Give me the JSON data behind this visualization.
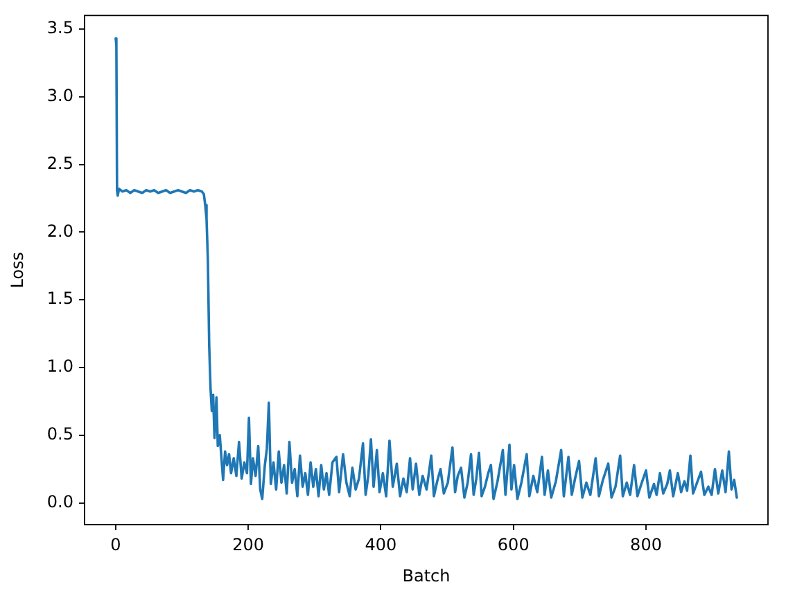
{
  "chart_data": {
    "type": "line",
    "xlabel": "Batch",
    "ylabel": "Loss",
    "color": "#1f77b4",
    "line_style": "solid",
    "xlim": [
      -47,
      984
    ],
    "xticks": [
      0,
      200,
      400,
      600,
      800
    ],
    "ylim": [
      -0.16,
      3.6
    ],
    "yticks": [
      {
        "value": 0,
        "label": "0.0"
      },
      0.5,
      {
        "value": 1,
        "label": "1.0"
      },
      1.5,
      {
        "value": 2,
        "label": "2.0"
      },
      2.5,
      {
        "value": 3,
        "label": "3.0"
      },
      3.5
    ],
    "x": [
      0,
      1,
      2,
      3,
      5,
      10,
      16,
      22,
      28,
      34,
      40,
      46,
      52,
      58,
      64,
      70,
      76,
      82,
      88,
      94,
      100,
      106,
      112,
      118,
      124,
      130,
      133,
      135,
      137,
      139,
      141,
      143,
      145,
      147,
      149,
      152,
      154,
      157,
      160,
      162,
      165,
      168,
      171,
      174,
      178,
      182,
      186,
      190,
      194,
      198,
      201,
      204,
      207,
      211,
      215,
      218,
      221,
      225,
      228,
      231,
      234,
      238,
      242,
      246,
      250,
      254,
      258,
      262,
      266,
      270,
      274,
      278,
      282,
      286,
      290,
      294,
      298,
      302,
      306,
      310,
      314,
      318,
      322,
      327,
      333,
      337,
      343,
      348,
      353,
      357,
      362,
      367,
      373,
      377,
      381,
      385,
      389,
      394,
      398,
      403,
      408,
      413,
      418,
      424,
      429,
      434,
      439,
      444,
      448,
      453,
      458,
      463,
      469,
      476,
      480,
      485,
      490,
      495,
      501,
      508,
      512,
      516,
      521,
      526,
      531,
      536,
      540,
      544,
      548,
      552,
      557,
      562,
      566,
      570,
      576,
      584,
      588,
      594,
      597,
      601,
      606,
      612,
      620,
      624,
      630,
      636,
      643,
      647,
      652,
      657,
      664,
      672,
      676,
      683,
      688,
      693,
      699,
      704,
      710,
      716,
      724,
      729,
      735,
      743,
      748,
      754,
      761,
      765,
      771,
      776,
      782,
      787,
      793,
      800,
      805,
      812,
      816,
      821,
      826,
      832,
      836,
      841,
      848,
      853,
      858,
      862,
      867,
      871,
      877,
      883,
      888,
      894,
      899,
      904,
      909,
      915,
      920,
      925,
      929,
      933,
      937
    ],
    "values": [
      3.43,
      3.38,
      2.31,
      2.27,
      2.32,
      2.3,
      2.31,
      2.29,
      2.31,
      2.3,
      2.29,
      2.31,
      2.3,
      2.31,
      2.29,
      2.3,
      2.31,
      2.29,
      2.3,
      2.31,
      2.3,
      2.29,
      2.31,
      2.3,
      2.31,
      2.3,
      2.28,
      2.2,
      2.1,
      1.8,
      1.17,
      0.85,
      0.68,
      0.8,
      0.48,
      0.78,
      0.42,
      0.5,
      0.3,
      0.17,
      0.38,
      0.28,
      0.36,
      0.22,
      0.33,
      0.2,
      0.45,
      0.18,
      0.3,
      0.22,
      0.63,
      0.14,
      0.33,
      0.2,
      0.42,
      0.1,
      0.03,
      0.28,
      0.4,
      0.74,
      0.14,
      0.3,
      0.1,
      0.38,
      0.15,
      0.28,
      0.07,
      0.45,
      0.15,
      0.25,
      0.05,
      0.35,
      0.12,
      0.22,
      0.06,
      0.3,
      0.12,
      0.25,
      0.05,
      0.28,
      0.1,
      0.22,
      0.06,
      0.3,
      0.34,
      0.08,
      0.36,
      0.15,
      0.05,
      0.26,
      0.1,
      0.18,
      0.44,
      0.06,
      0.2,
      0.47,
      0.12,
      0.39,
      0.08,
      0.22,
      0.05,
      0.46,
      0.12,
      0.29,
      0.05,
      0.18,
      0.08,
      0.33,
      0.1,
      0.29,
      0.06,
      0.2,
      0.1,
      0.35,
      0.05,
      0.16,
      0.25,
      0.07,
      0.15,
      0.41,
      0.08,
      0.2,
      0.26,
      0.04,
      0.15,
      0.36,
      0.06,
      0.18,
      0.37,
      0.05,
      0.12,
      0.22,
      0.28,
      0.03,
      0.16,
      0.39,
      0.06,
      0.43,
      0.1,
      0.28,
      0.03,
      0.15,
      0.36,
      0.05,
      0.2,
      0.08,
      0.34,
      0.06,
      0.24,
      0.04,
      0.16,
      0.39,
      0.05,
      0.34,
      0.06,
      0.18,
      0.31,
      0.04,
      0.15,
      0.06,
      0.33,
      0.05,
      0.17,
      0.29,
      0.04,
      0.12,
      0.35,
      0.05,
      0.15,
      0.06,
      0.28,
      0.05,
      0.14,
      0.24,
      0.04,
      0.14,
      0.06,
      0.22,
      0.07,
      0.14,
      0.24,
      0.05,
      0.22,
      0.08,
      0.16,
      0.09,
      0.35,
      0.07,
      0.15,
      0.23,
      0.06,
      0.12,
      0.06,
      0.25,
      0.07,
      0.24,
      0.08,
      0.38,
      0.1,
      0.17,
      0.04
    ]
  }
}
